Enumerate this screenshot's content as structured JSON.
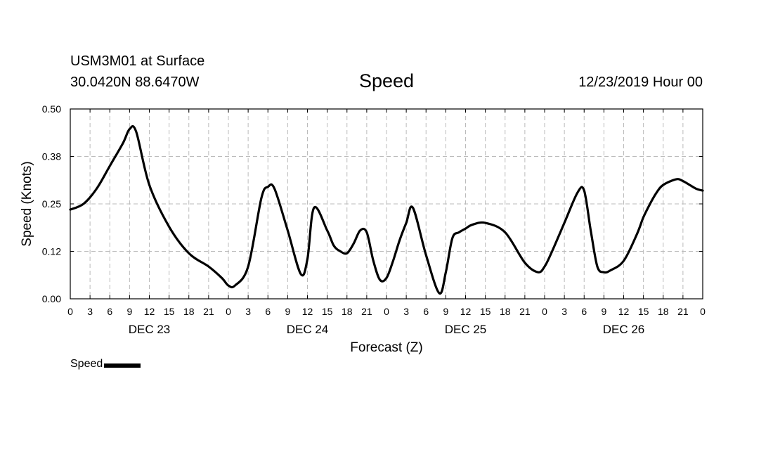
{
  "header": {
    "station": "USM3M01 at Surface",
    "coords": "30.0420N 88.6470W",
    "title": "Speed",
    "run": "12/23/2019 Hour 00"
  },
  "legend": {
    "label": "Speed"
  },
  "chart_data": {
    "type": "line",
    "title": "Speed",
    "xlabel": "Forecast (Z)",
    "ylabel": "Speed (Knots)",
    "ylim": [
      0,
      0.5
    ],
    "xlim": [
      0,
      96
    ],
    "y_ticks": [
      0.0,
      0.125,
      0.25,
      0.375,
      0.5
    ],
    "y_tick_labels": [
      "0.00",
      "0.12",
      "0.25",
      "0.38",
      "0.50"
    ],
    "x_ticks": [
      0,
      3,
      6,
      9,
      12,
      15,
      18,
      21,
      24,
      27,
      30,
      33,
      36,
      39,
      42,
      45,
      48,
      51,
      54,
      57,
      60,
      63,
      66,
      69,
      72,
      75,
      78,
      81,
      84,
      87,
      90,
      93,
      96
    ],
    "x_tick_labels": [
      "0",
      "3",
      "6",
      "9",
      "12",
      "15",
      "18",
      "21",
      "0",
      "3",
      "6",
      "9",
      "12",
      "15",
      "18",
      "21",
      "0",
      "3",
      "6",
      "9",
      "12",
      "15",
      "18",
      "21",
      "0",
      "3",
      "6",
      "9",
      "12",
      "15",
      "18",
      "21",
      "0"
    ],
    "day_labels": [
      {
        "x": 12,
        "label": "DEC 23"
      },
      {
        "x": 36,
        "label": "DEC 24"
      },
      {
        "x": 60,
        "label": "DEC 25"
      },
      {
        "x": 84,
        "label": "DEC 26"
      }
    ],
    "grid": true,
    "legend_position": "bottom-left",
    "series": [
      {
        "name": "Speed",
        "x": [
          0,
          2,
          4,
          6,
          8,
          9,
          10,
          12,
          15,
          18,
          21,
          23,
          24,
          25,
          27,
          29,
          30,
          31,
          33,
          35,
          36,
          37,
          39,
          40,
          41,
          42,
          43,
          44,
          45,
          46,
          47,
          48,
          49,
          50,
          51,
          52,
          54,
          56,
          57,
          58,
          59,
          60,
          61,
          63,
          66,
          69,
          71,
          72,
          73,
          75,
          77,
          78,
          79,
          80,
          81,
          82,
          84,
          86,
          87,
          88,
          89,
          90,
          92,
          93,
          94,
          95,
          96
        ],
        "y": [
          0.235,
          0.25,
          0.29,
          0.35,
          0.41,
          0.447,
          0.44,
          0.3,
          0.19,
          0.12,
          0.085,
          0.055,
          0.035,
          0.035,
          0.085,
          0.265,
          0.295,
          0.29,
          0.18,
          0.065,
          0.105,
          0.24,
          0.18,
          0.14,
          0.125,
          0.12,
          0.145,
          0.18,
          0.175,
          0.1,
          0.05,
          0.055,
          0.1,
          0.155,
          0.2,
          0.24,
          0.115,
          0.015,
          0.07,
          0.16,
          0.175,
          0.185,
          0.195,
          0.2,
          0.175,
          0.095,
          0.07,
          0.085,
          0.12,
          0.2,
          0.28,
          0.285,
          0.18,
          0.085,
          0.07,
          0.075,
          0.1,
          0.17,
          0.215,
          0.25,
          0.28,
          0.3,
          0.315,
          0.31,
          0.3,
          0.29,
          0.285
        ]
      }
    ]
  }
}
